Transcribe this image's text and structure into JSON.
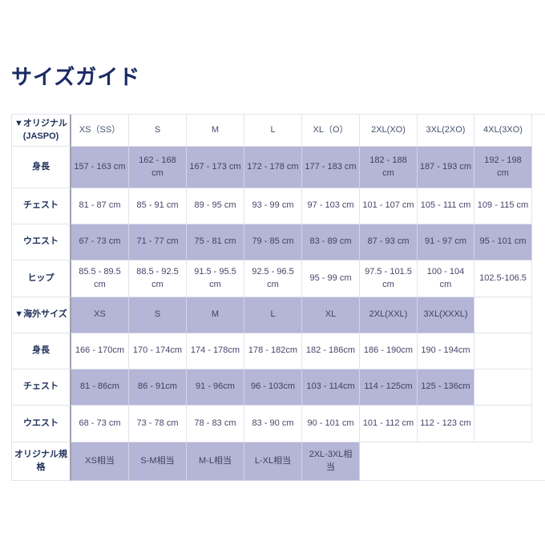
{
  "page": {
    "title": "サイズガイド"
  },
  "colors": {
    "shaded_row": "#b5b5d7",
    "title_text": "#1a2a63",
    "cell_text": "#45456b",
    "label_text": "#21325a",
    "label_divider": "#a0a0ae",
    "grid_line": "#e3e3ec"
  },
  "table": {
    "header": {
      "label": "▼オリジナル\n(JASPO)",
      "sizes": [
        "XS（SS）",
        "S",
        "M",
        "L",
        "XL（O）",
        "2XL(XO)",
        "3XL(2XO)",
        "4XL(3XO)"
      ]
    },
    "rows": [
      {
        "label": "身長",
        "cells": [
          "157 - 163 cm",
          "162 - 168\ncm",
          "167 - 173 cm",
          "172 - 178 cm",
          "177 - 183 cm",
          "182 - 188\ncm",
          "187 - 193 cm",
          "192 - 198\ncm"
        ]
      },
      {
        "label": "チェスト",
        "cells": [
          "81 - 87 cm",
          "85 - 91 cm",
          "89 - 95 cm",
          "93 - 99 cm",
          "97 - 103 cm",
          "101 - 107 cm",
          "105 - 111 cm",
          "109 - 115 cm"
        ]
      },
      {
        "label": "ウエスト",
        "cells": [
          "67 - 73 cm",
          "71 - 77 cm",
          "75 - 81 cm",
          "79 - 85 cm",
          "83 - 89 cm",
          "87 - 93 cm",
          "91 - 97 cm",
          "95 - 101 cm"
        ]
      },
      {
        "label": "ヒップ",
        "cells": [
          "85.5 - 89.5\ncm",
          "88.5 - 92.5\ncm",
          "91.5 - 95.5\ncm",
          "92.5 - 96.5\ncm",
          "95 - 99 cm",
          "97.5 - 101.5\ncm",
          "100 - 104\ncm",
          "102.5-106.5"
        ]
      },
      {
        "label": "▼海外サイズ",
        "cells": [
          "XS",
          "S",
          "M",
          "L",
          "XL",
          "2XL(XXL)",
          "3XL(XXXL)",
          ""
        ]
      },
      {
        "label": "身長",
        "cells": [
          "166 - 170cm",
          "170 - 174cm",
          "174 - 178cm",
          "178 - 182cm",
          "182 - 186cm",
          "186 - 190cm",
          "190 - 194cm",
          ""
        ]
      },
      {
        "label": "チェスト",
        "cells": [
          "81 - 86cm",
          "86 - 91cm",
          "91 - 96cm",
          "96 - 103cm",
          "103 - 114cm",
          "114 - 125cm",
          "125 - 136cm",
          ""
        ]
      },
      {
        "label": "ウエスト",
        "cells": [
          "68 - 73 cm",
          "73 - 78 cm",
          "78 - 83 cm",
          "83 - 90 cm",
          "90 - 101 cm",
          "101 - 112 cm",
          "112 - 123 cm",
          ""
        ]
      },
      {
        "label": "オリジナル規\n格",
        "cells": [
          "XS相当",
          "S-M相当",
          "M-L相当",
          "L-XL相当",
          "2XL-3XL相\n当"
        ]
      }
    ]
  }
}
